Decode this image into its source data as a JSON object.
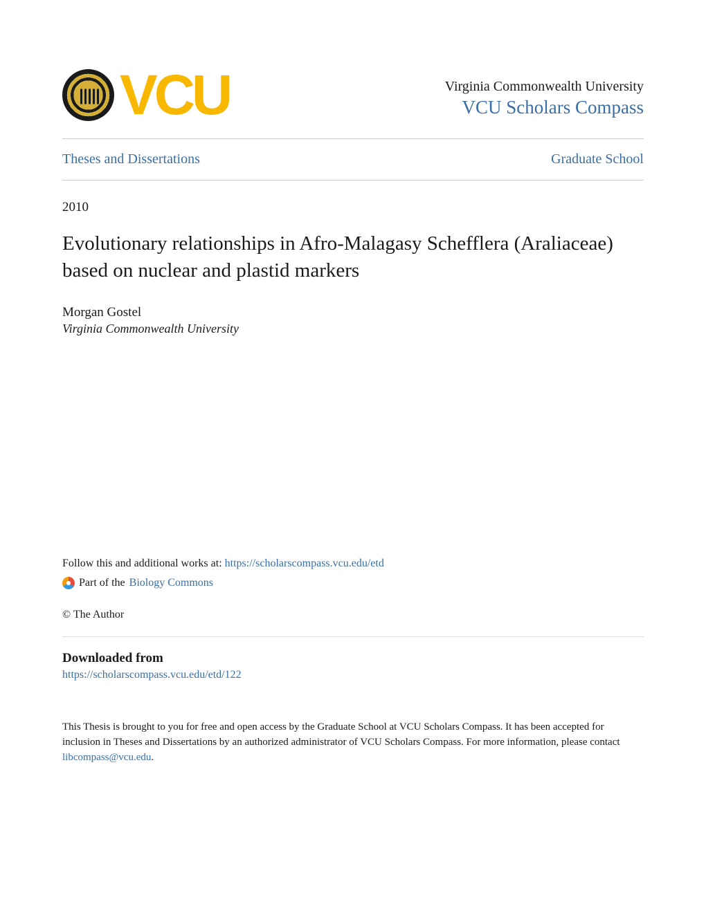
{
  "header": {
    "logo_text": "VCU",
    "institution_name": "Virginia Commonwealth University",
    "repository_name": "VCU Scholars Compass"
  },
  "nav": {
    "left_link": "Theses and Dissertations",
    "right_link": "Graduate School"
  },
  "document": {
    "year": "2010",
    "title": "Evolutionary relationships in Afro-Malagasy Schefflera (Araliaceae) based on nuclear and plastid markers",
    "author_name": "Morgan Gostel",
    "author_affiliation": "Virginia Commonwealth University"
  },
  "follow": {
    "prefix": "Follow this and additional works at: ",
    "url": "https://scholarscompass.vcu.edu/etd"
  },
  "part_of": {
    "prefix": "Part of the ",
    "link": "Biology Commons"
  },
  "copyright": "© The Author",
  "downloaded": {
    "heading": "Downloaded from",
    "url": "https://scholarscompass.vcu.edu/etd/122"
  },
  "footer": {
    "text_before": "This Thesis is brought to you for free and open access by the Graduate School at VCU Scholars Compass. It has been accepted for inclusion in Theses and Dissertations by an authorized administrator of VCU Scholars Compass. For more information, please contact ",
    "email": "libcompass@vcu.edu",
    "text_after": "."
  },
  "colors": {
    "link_color": "#3a6ea5",
    "vcu_gold": "#f8b800",
    "text_color": "#1a1a1a",
    "divider_color": "#cccccc"
  }
}
